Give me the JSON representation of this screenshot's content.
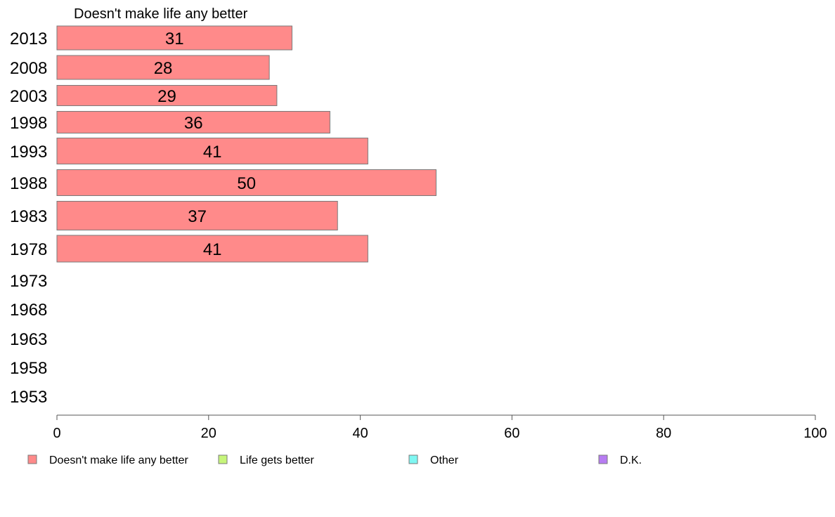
{
  "chart_data": {
    "type": "bar",
    "orientation": "horizontal",
    "header": "Doesn't make life any better",
    "categories": [
      "2013",
      "2008",
      "2003",
      "1998",
      "1993",
      "1988",
      "1983",
      "1978",
      "1973",
      "1968",
      "1963",
      "1958",
      "1953"
    ],
    "series": [
      {
        "name": "Doesn't make life any better",
        "color": "#ff8a8a",
        "values": [
          31,
          28,
          29,
          36,
          41,
          50,
          37,
          41,
          null,
          null,
          null,
          null,
          null
        ]
      }
    ],
    "xlim": [
      0,
      100
    ],
    "xticks": [
      0,
      20,
      40,
      60,
      80,
      100
    ],
    "legend": {
      "position": "bottom",
      "items": [
        {
          "label": "Doesn't make life any better",
          "color": "#ff8a8a"
        },
        {
          "label": "Life gets better",
          "color": "#c6f57a"
        },
        {
          "label": "Other",
          "color": "#7ff7f2"
        },
        {
          "label": "D.K.",
          "color": "#b77cf2"
        }
      ]
    },
    "grid": false
  }
}
